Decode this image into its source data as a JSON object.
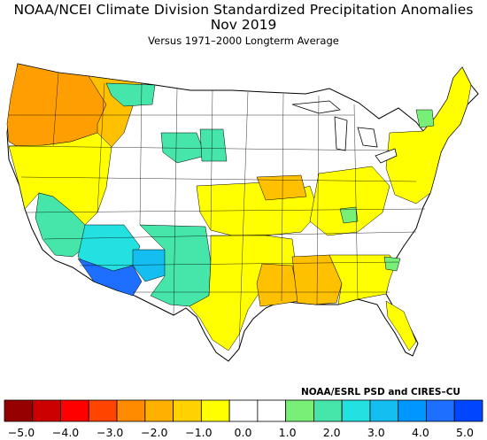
{
  "header": {
    "title": "NOAA/NCEI Climate Division Standardized Precipitation Anomalies",
    "period": "Nov 2019",
    "baseline": "Versus 1971–2000 Longterm Average"
  },
  "credit": "NOAA/ESRL PSD and CIRES–CU",
  "legend": {
    "colors": [
      "#960000",
      "#cd0000",
      "#ff0000",
      "#ff4400",
      "#ff8c00",
      "#ffb000",
      "#ffd200",
      "#ffff00",
      "#ffffff",
      "#ffffff",
      "#78f078",
      "#46e6aa",
      "#23e1e1",
      "#14bef0",
      "#0096ff",
      "#1e6eff",
      "#0046ff"
    ],
    "ticks": [
      "−5.0",
      "−4.0",
      "−3.0",
      "−2.0",
      "−1.0",
      "0.0",
      "1.0",
      "2.0",
      "3.0",
      "4.0",
      "5.0"
    ],
    "tick_values": [
      -5,
      -4,
      -3,
      -2,
      -1,
      0,
      1,
      2,
      3,
      4,
      5
    ]
  },
  "map_regions": [
    {
      "name": "pacific-northwest",
      "color": "#ff9e00"
    },
    {
      "name": "northern-rockies",
      "color": "#ffc000"
    },
    {
      "name": "great-basin",
      "color": "#ffff00"
    },
    {
      "name": "nevada-west",
      "color": "#46e6aa"
    },
    {
      "name": "arizona-central",
      "color": "#23e1e1"
    },
    {
      "name": "arizona-south",
      "color": "#1e6eff"
    },
    {
      "name": "new-mexico",
      "color": "#46e6aa"
    },
    {
      "name": "texas-west",
      "color": "#ffff00"
    },
    {
      "name": "central-plains",
      "color": "#ffff00"
    },
    {
      "name": "lower-mississippi",
      "color": "#ffc000"
    },
    {
      "name": "southeast",
      "color": "#ffff00"
    },
    {
      "name": "ohio-valley",
      "color": "#ffff00"
    },
    {
      "name": "northeast",
      "color": "#ffff00"
    }
  ]
}
